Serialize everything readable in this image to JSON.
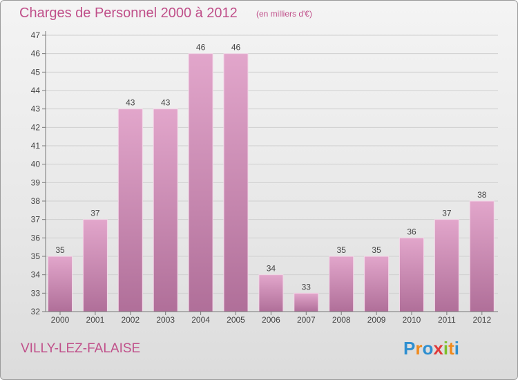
{
  "header": {
    "title": "Charges de Personnel 2000 à 2012",
    "subtitle": "(en milliers d'€)"
  },
  "footer": {
    "place": "VILLY-LEZ-FALAISE",
    "logo_text": "Proxiti",
    "logo_letters": [
      {
        "ch": "P",
        "color": "#2e8fd0"
      },
      {
        "ch": "r",
        "color": "#f08a1c"
      },
      {
        "ch": "o",
        "color": "#2e8fd0"
      },
      {
        "ch": "x",
        "color": "#e03a3a"
      },
      {
        "ch": "i",
        "color": "#7cbf2a"
      },
      {
        "ch": "t",
        "color": "#f08a1c"
      },
      {
        "ch": "i",
        "color": "#2e8fd0"
      }
    ]
  },
  "colors": {
    "accent": "#c0508a",
    "bar_top": "#e2a6cb",
    "bar_bottom": "#b06f99",
    "bar_edge": "#f4d6e8"
  },
  "chart_data": {
    "type": "bar",
    "title": "Charges de Personnel 2000 à 2012",
    "subtitle": "(en milliers d'€)",
    "categories": [
      "2000",
      "2001",
      "2002",
      "2003",
      "2004",
      "2005",
      "2006",
      "2007",
      "2008",
      "2009",
      "2010",
      "2011",
      "2012"
    ],
    "values": [
      35,
      37,
      43,
      43,
      46,
      46,
      34,
      33,
      35,
      35,
      36,
      37,
      38
    ],
    "ylim": [
      32,
      47
    ],
    "yticks": [
      32,
      33,
      34,
      35,
      36,
      37,
      38,
      39,
      40,
      41,
      42,
      43,
      44,
      45,
      46,
      47
    ],
    "grid": true,
    "data_labels": true
  }
}
